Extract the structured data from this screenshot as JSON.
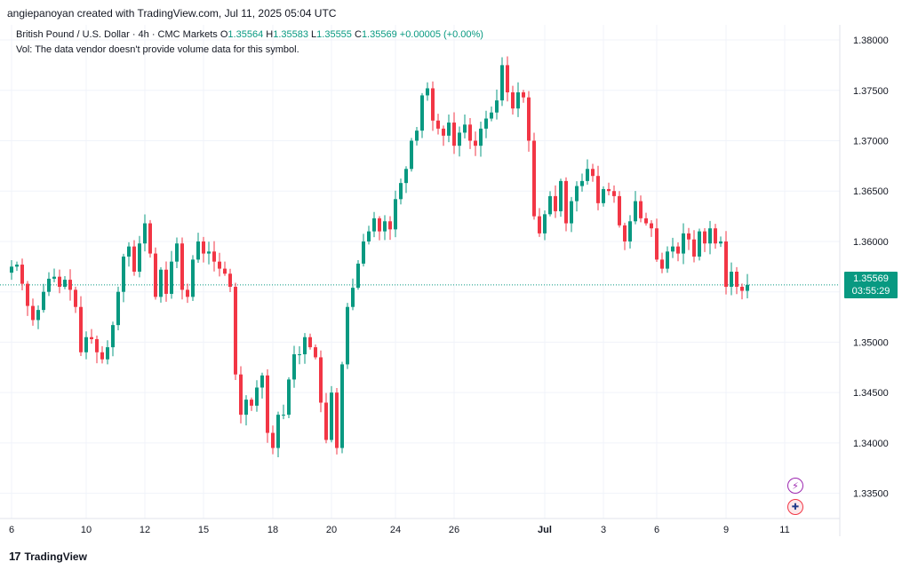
{
  "header": {
    "credit": "angiepanoyan created with TradingView.com, Jul 11, 2025 05:04 UTC",
    "symbol": "British Pound / U.S. Dollar · 4h · CMC Markets",
    "o_label": "O",
    "o_value": "1.35564",
    "h_label": "H",
    "h_value": "1.35583",
    "l_label": "L",
    "l_value": "1.35555",
    "c_label": "C",
    "c_value": "1.35569",
    "change": "+0.00005 (+0.00%)",
    "volume_note": "Vol: The data vendor doesn't provide volume data for this symbol."
  },
  "price_box": {
    "price": "1.35569",
    "countdown": "03:55:29"
  },
  "footer": {
    "logo_glyph": "17",
    "brand": "TradingView"
  },
  "icons": {
    "flash": "lightning-icon",
    "flag": "uk-flag-icon"
  },
  "colors": {
    "up": "#089981",
    "down": "#f23645",
    "grid": "#f0f3fa",
    "axis_text": "#131722",
    "price_line": "#089981"
  },
  "chart_data": {
    "type": "candlestick",
    "ylim": [
      1.3325,
      1.3815
    ],
    "ytick_values": [
      1.335,
      1.34,
      1.345,
      1.35,
      1.355,
      1.36,
      1.365,
      1.37,
      1.375,
      1.38
    ],
    "ytick_labels": [
      "1.33500",
      "1.34000",
      "1.34500",
      "1.35000",
      "1.35500",
      "1.36000",
      "1.36500",
      "1.37000",
      "1.37500",
      "1.38000"
    ],
    "xtick_labels": [
      {
        "label": "6",
        "index": 0
      },
      {
        "label": "10",
        "index": 14
      },
      {
        "label": "12",
        "index": 25
      },
      {
        "label": "15",
        "index": 36
      },
      {
        "label": "18",
        "index": 49
      },
      {
        "label": "20",
        "index": 60
      },
      {
        "label": "24",
        "index": 72
      },
      {
        "label": "26",
        "index": 83
      },
      {
        "label": "Jul",
        "index": 100
      },
      {
        "label": "3",
        "index": 111
      },
      {
        "label": "6",
        "index": 121
      },
      {
        "label": "9",
        "index": 134
      },
      {
        "label": "11",
        "index": 145
      }
    ],
    "last_price": 1.35569,
    "closes": [
      1.3575,
      1.3577,
      1.3558,
      1.3536,
      1.3522,
      1.3532,
      1.355,
      1.3563,
      1.3565,
      1.3555,
      1.3562,
      1.3552,
      1.3535,
      1.349,
      1.3505,
      1.3503,
      1.349,
      1.3483,
      1.3495,
      1.3517,
      1.355,
      1.3585,
      1.3595,
      1.357,
      1.3598,
      1.3618,
      1.3588,
      1.3545,
      1.3572,
      1.3548,
      1.358,
      1.3598,
      1.3552,
      1.3545,
      1.3582,
      1.36,
      1.3588,
      1.359,
      1.358,
      1.3573,
      1.3568,
      1.3555,
      1.3468,
      1.3428,
      1.3443,
      1.3437,
      1.3455,
      1.3467,
      1.341,
      1.3395,
      1.3428,
      1.3428,
      1.3463,
      1.3488,
      1.3488,
      1.3505,
      1.3495,
      1.3485,
      1.344,
      1.3403,
      1.345,
      1.3395,
      1.3478,
      1.3535,
      1.3554,
      1.3578,
      1.36,
      1.361,
      1.3623,
      1.361,
      1.362,
      1.3612,
      1.3642,
      1.3658,
      1.3672,
      1.37,
      1.371,
      1.3745,
      1.3752,
      1.372,
      1.3712,
      1.3705,
      1.3718,
      1.3695,
      1.3708,
      1.3716,
      1.37,
      1.3695,
      1.3712,
      1.3722,
      1.3728,
      1.374,
      1.3775,
      1.3748,
      1.3732,
      1.3748,
      1.3743,
      1.37,
      1.3625,
      1.3608,
      1.3627,
      1.3645,
      1.363,
      1.366,
      1.3618,
      1.364,
      1.3655,
      1.366,
      1.3672,
      1.3665,
      1.3638,
      1.3652,
      1.365,
      1.3645,
      1.3616,
      1.36,
      1.362,
      1.364,
      1.3623,
      1.3618,
      1.3613,
      1.3582,
      1.3573,
      1.359,
      1.3595,
      1.3588,
      1.3608,
      1.3602,
      1.3585,
      1.361,
      1.3598,
      1.3613,
      1.3598,
      1.36,
      1.3555,
      1.357,
      1.3555,
      1.3551,
      1.3557
    ]
  }
}
